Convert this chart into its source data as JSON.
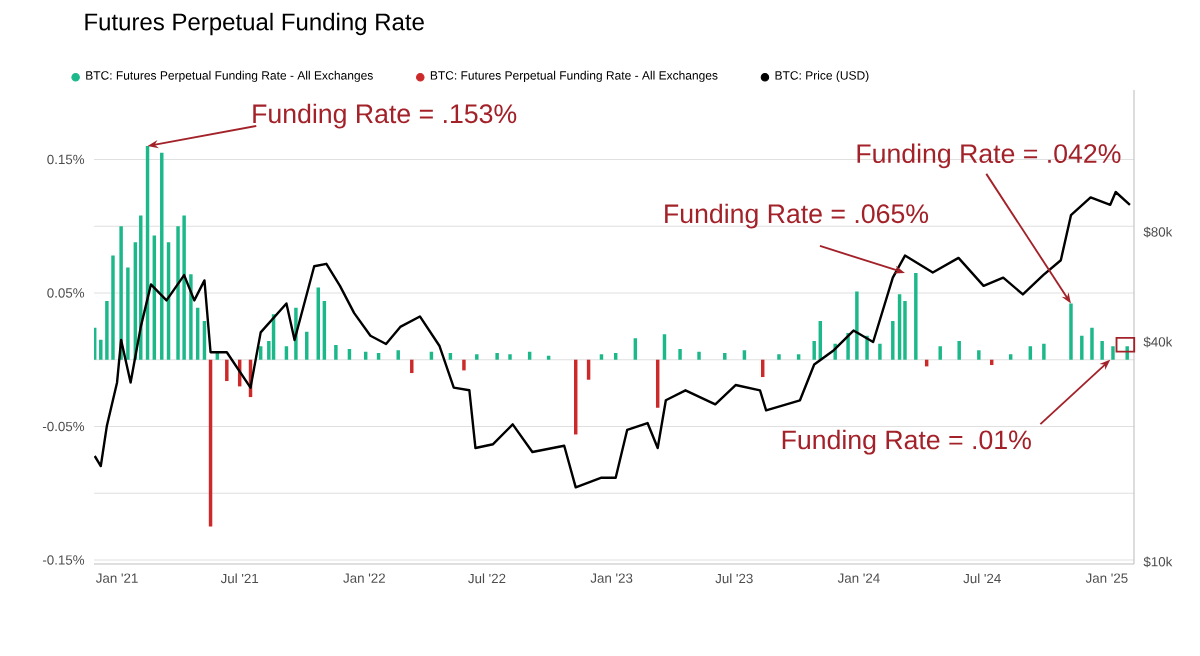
{
  "chart_data": {
    "type": "bar",
    "title": "Futures Perpetual Funding Rate",
    "x": [
      "2020-11-29",
      "2020-12-08",
      "2020-12-17",
      "2020-12-26",
      "2021-01-07",
      "2021-01-17",
      "2021-01-28",
      "2021-02-05",
      "2021-02-15",
      "2021-02-25",
      "2021-03-08",
      "2021-03-18",
      "2021-04-01",
      "2021-04-10",
      "2021-04-20",
      "2021-04-30",
      "2021-05-10",
      "2021-05-19",
      "2021-05-29",
      "2021-06-12",
      "2021-07-01",
      "2021-07-17",
      "2021-08-01",
      "2021-08-13",
      "2021-08-20",
      "2021-09-08",
      "2021-09-22",
      "2021-10-08",
      "2021-10-25",
      "2021-11-03",
      "2021-11-20",
      "2021-12-10",
      "2022-01-03",
      "2022-01-22",
      "2022-02-20",
      "2022-03-12",
      "2022-04-10",
      "2022-05-08",
      "2022-05-28",
      "2022-06-16",
      "2022-07-16",
      "2022-08-04",
      "2022-09-02",
      "2022-09-30",
      "2022-11-09",
      "2022-11-28",
      "2022-12-17",
      "2023-01-07",
      "2023-02-05",
      "2023-03-10",
      "2023-03-20",
      "2023-04-12",
      "2023-05-10",
      "2023-06-17",
      "2023-07-16",
      "2023-08-12",
      "2023-09-05",
      "2023-10-04",
      "2023-10-27",
      "2023-11-05",
      "2023-11-27",
      "2023-12-16",
      "2023-12-29",
      "2024-01-13",
      "2024-02-01",
      "2024-02-20",
      "2024-03-01",
      "2024-03-09",
      "2024-03-25",
      "2024-04-10",
      "2024-04-30",
      "2024-05-28",
      "2024-06-26",
      "2024-07-15",
      "2024-08-12",
      "2024-09-10",
      "2024-09-30",
      "2024-11-09",
      "2024-11-25",
      "2024-12-10",
      "2024-12-25",
      "2025-01-10",
      "2025-01-31"
    ],
    "series": [
      {
        "name": "BTC: Futures Perpetual Funding Rate - All Exchanges",
        "color": "#1db88a",
        "values": [
          0.024,
          0.015,
          0.044,
          0.078,
          0.1,
          0.069,
          0.088,
          0.108,
          0.16,
          0.093,
          0.155,
          0.088,
          0.1,
          0.108,
          0.064,
          0.039,
          0.029,
          null,
          0.005,
          null,
          null,
          null,
          0.01,
          0.014,
          0.034,
          0.01,
          0.039,
          0.021,
          0.054,
          0.044,
          0.011,
          0.008,
          0.006,
          0.005,
          0.007,
          null,
          0.006,
          0.005,
          null,
          0.004,
          0.005,
          0.004,
          0.006,
          0.003,
          null,
          null,
          0.004,
          0.005,
          0.016,
          null,
          0.019,
          0.008,
          0.006,
          0.005,
          0.007,
          null,
          0.004,
          0.004,
          0.014,
          0.029,
          0.012,
          0.02,
          0.051,
          0.018,
          0.012,
          0.029,
          0.049,
          0.044,
          0.065,
          null,
          0.01,
          0.014,
          0.007,
          null,
          0.004,
          0.01,
          0.012,
          0.042,
          0.018,
          0.024,
          0.014,
          0.01,
          0.01
        ]
      },
      {
        "name": "BTC: Futures Perpetual Funding Rate - All Exchanges",
        "color": "#cc2a2a",
        "values": [
          null,
          null,
          null,
          null,
          null,
          null,
          null,
          null,
          null,
          null,
          null,
          null,
          null,
          null,
          null,
          null,
          null,
          -0.125,
          null,
          -0.016,
          -0.02,
          -0.028,
          null,
          null,
          null,
          null,
          null,
          null,
          null,
          null,
          null,
          null,
          null,
          null,
          null,
          -0.01,
          null,
          null,
          -0.008,
          null,
          null,
          null,
          null,
          null,
          -0.056,
          -0.015,
          null,
          null,
          null,
          -0.036,
          null,
          null,
          null,
          null,
          null,
          -0.013,
          null,
          null,
          null,
          null,
          null,
          null,
          null,
          null,
          null,
          null,
          null,
          null,
          null,
          -0.005,
          null,
          null,
          null,
          -0.004,
          null,
          null,
          null,
          null,
          null,
          null,
          null,
          null,
          null
        ]
      },
      {
        "name": "BTC: Price (USD)",
        "color": "#000000",
        "type": "line",
        "axis": "y2",
        "x": [
          "2020-11-29",
          "2020-12-08",
          "2020-12-17",
          "2021-01-01",
          "2021-01-07",
          "2021-01-21",
          "2021-02-05",
          "2021-02-20",
          "2021-03-15",
          "2021-04-10",
          "2021-04-25",
          "2021-05-10",
          "2021-05-19",
          "2021-06-12",
          "2021-07-17",
          "2021-08-01",
          "2021-09-08",
          "2021-09-20",
          "2021-10-19",
          "2021-11-06",
          "2021-11-26",
          "2021-12-17",
          "2022-01-10",
          "2022-02-02",
          "2022-02-23",
          "2022-03-24",
          "2022-04-22",
          "2022-05-13",
          "2022-06-05",
          "2022-06-14",
          "2022-07-10",
          "2022-08-08",
          "2022-09-06",
          "2022-10-23",
          "2022-11-09",
          "2022-12-17",
          "2023-01-07",
          "2023-01-24",
          "2023-02-23",
          "2023-03-10",
          "2023-03-22",
          "2023-04-20",
          "2023-06-03",
          "2023-07-03",
          "2023-08-08",
          "2023-08-17",
          "2023-10-06",
          "2023-10-27",
          "2023-11-25",
          "2023-12-24",
          "2024-01-22",
          "2024-02-20",
          "2024-03-09",
          "2024-04-19",
          "2024-05-27",
          "2024-07-03",
          "2024-08-01",
          "2024-08-30",
          "2024-09-29",
          "2024-10-25",
          "2024-11-09",
          "2024-12-08",
          "2025-01-06",
          "2025-01-14",
          "2025-02-04"
        ],
        "values": [
          19500,
          18300,
          23600,
          31000,
          40500,
          31000,
          44000,
          57500,
          52000,
          61000,
          52000,
          59000,
          37500,
          37500,
          30000,
          42500,
          51000,
          40500,
          64500,
          65500,
          57000,
          48000,
          41600,
          39500,
          44000,
          47000,
          39000,
          30000,
          29500,
          20500,
          21000,
          23800,
          20000,
          20800,
          16000,
          17000,
          17000,
          23000,
          24000,
          20500,
          27700,
          29500,
          27000,
          30500,
          29500,
          26000,
          27700,
          34700,
          38000,
          43000,
          40000,
          60000,
          69000,
          62000,
          68000,
          57000,
          60000,
          54000,
          61000,
          67000,
          89000,
          99500,
          95000,
          103000,
          95000
        ]
      }
    ],
    "xlim": [
      "2020-11-28",
      "2025-02-10"
    ],
    "xticks": [
      {
        "value": "2021-01-01",
        "label": "Jan '21"
      },
      {
        "value": "2021-07-01",
        "label": "Jul '21"
      },
      {
        "value": "2022-01-01",
        "label": "Jan '22"
      },
      {
        "value": "2022-07-01",
        "label": "Jul '22"
      },
      {
        "value": "2023-01-01",
        "label": "Jan '23"
      },
      {
        "value": "2023-07-01",
        "label": "Jul '23"
      },
      {
        "value": "2024-01-01",
        "label": "Jan '24"
      },
      {
        "value": "2024-07-01",
        "label": "Jul '24"
      },
      {
        "value": "2025-01-01",
        "label": "Jan '25"
      }
    ],
    "ylim": [
      -0.153,
      0.202
    ],
    "yticks": [
      {
        "value": -0.15,
        "label": "-0.15%"
      },
      {
        "value": -0.1,
        "label": null
      },
      {
        "value": -0.05,
        "label": "-0.05%"
      },
      {
        "value": 0,
        "label": null
      },
      {
        "value": 0.05,
        "label": "0.05%"
      },
      {
        "value": 0.1,
        "label": null
      },
      {
        "value": 0.15,
        "label": "0.15%"
      }
    ],
    "y2lim": [
      9870,
      196000
    ],
    "y2ticks": [
      {
        "value": 10000,
        "label": "$10k"
      },
      {
        "value": 40000,
        "label": "$40k"
      },
      {
        "value": 80000,
        "label": "$80k"
      }
    ],
    "log": "y2",
    "grid": "y",
    "legend": "top left",
    "annotations": [
      {
        "text": "Funding Rate = .153%",
        "x": "2021-02-15",
        "y": 0.16
      },
      {
        "text": "Funding Rate = .065%",
        "x": "2024-03-09",
        "y": 0.065
      },
      {
        "text": "Funding Rate = .042%",
        "x": "2024-11-09",
        "y": 0.042
      },
      {
        "text": "Funding Rate = .01%",
        "x": "2025-01-06",
        "y": 0
      }
    ]
  }
}
